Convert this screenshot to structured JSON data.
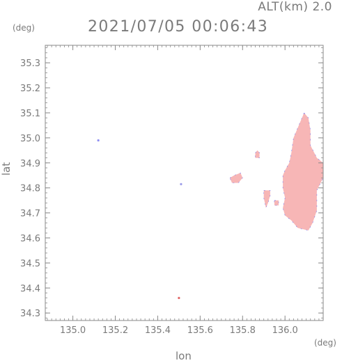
{
  "header": {
    "altitude": "ALT(km) 2.0",
    "timestamp": "2021/07/05 00:06:43"
  },
  "chart_data": {
    "type": "scatter",
    "xlabel": "lon",
    "ylabel": "lat",
    "x_unit": "(deg)",
    "y_unit": "(deg)",
    "xlim": [
      134.87,
      136.18
    ],
    "ylim": [
      34.27,
      35.37
    ],
    "x_ticks": [
      "135.0",
      "135.2",
      "135.4",
      "135.6",
      "135.8",
      "136.0"
    ],
    "x_tick_values": [
      135.0,
      135.2,
      135.4,
      135.6,
      135.8,
      136.0
    ],
    "y_ticks": [
      "34.3",
      "34.4",
      "34.5",
      "34.6",
      "34.7",
      "34.8",
      "34.9",
      "35.0",
      "35.1",
      "35.2",
      "35.3"
    ],
    "y_tick_values": [
      34.3,
      34.4,
      34.5,
      34.6,
      34.7,
      34.8,
      34.9,
      35.0,
      35.1,
      35.2,
      35.3
    ],
    "colors": {
      "echo": "#f7b6b6",
      "edge": "#7b7bf0",
      "axis": "#8a8a8a"
    },
    "echo_regions": [
      {
        "name": "east-main-cell",
        "points": [
          [
            136.09,
            35.1
          ],
          [
            136.11,
            35.08
          ],
          [
            136.12,
            35.03
          ],
          [
            136.12,
            34.97
          ],
          [
            136.15,
            34.92
          ],
          [
            136.18,
            34.9
          ],
          [
            136.18,
            34.84
          ],
          [
            136.15,
            34.79
          ],
          [
            136.15,
            34.71
          ],
          [
            136.13,
            34.66
          ],
          [
            136.11,
            34.63
          ],
          [
            136.06,
            34.64
          ],
          [
            136.03,
            34.67
          ],
          [
            136.0,
            34.69
          ],
          [
            135.99,
            34.72
          ],
          [
            136.0,
            34.76
          ],
          [
            135.99,
            34.8
          ],
          [
            135.99,
            34.85
          ],
          [
            136.0,
            34.87
          ],
          [
            136.02,
            34.9
          ],
          [
            136.03,
            34.94
          ],
          [
            136.04,
            35.0
          ],
          [
            136.07,
            35.06
          ]
        ]
      },
      {
        "name": "cell-135.75",
        "points": [
          [
            135.74,
            34.84
          ],
          [
            135.76,
            34.85
          ],
          [
            135.79,
            34.86
          ],
          [
            135.8,
            34.84
          ],
          [
            135.78,
            34.82
          ],
          [
            135.75,
            34.82
          ]
        ]
      },
      {
        "name": "cell-135.88",
        "points": [
          [
            135.86,
            34.94
          ],
          [
            135.87,
            34.95
          ],
          [
            135.88,
            34.94
          ],
          [
            135.88,
            34.92
          ],
          [
            135.86,
            34.92
          ]
        ]
      },
      {
        "name": "cell-135.91",
        "points": [
          [
            135.9,
            34.79
          ],
          [
            135.93,
            34.79
          ],
          [
            135.93,
            34.77
          ],
          [
            135.92,
            34.74
          ],
          [
            135.91,
            34.72
          ],
          [
            135.9,
            34.76
          ]
        ]
      },
      {
        "name": "cell-135.96",
        "points": [
          [
            135.95,
            34.75
          ],
          [
            135.97,
            34.75
          ],
          [
            135.97,
            34.73
          ],
          [
            135.95,
            34.73
          ]
        ]
      }
    ],
    "echo_dots": [
      {
        "name": "dot-135.12",
        "x": 135.12,
        "y": 34.99,
        "color": "#8f8ff2"
      },
      {
        "name": "dot-135.51",
        "x": 135.51,
        "y": 34.815,
        "color": "#9a9ae8"
      },
      {
        "name": "dot-135.50",
        "x": 135.5,
        "y": 34.36,
        "color": "#e06060"
      }
    ]
  }
}
